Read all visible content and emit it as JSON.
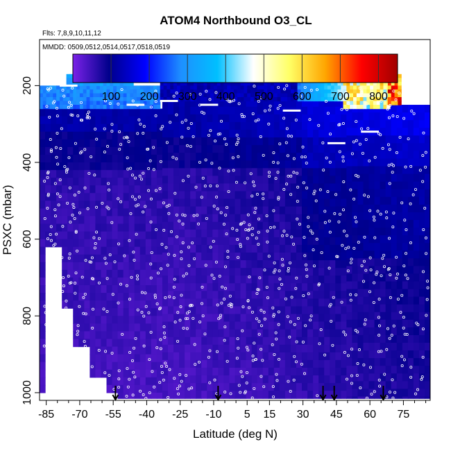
{
  "chart_data": {
    "type": "heatmap",
    "title": "ATOM4 Northbound O3_CL",
    "subtitle": "Flts: 7,8,9,10,11,12",
    "annotation": "MMDD: 0509,0512,0514,0517,0518,0519",
    "xlabel": "Latitude (deg N)",
    "ylabel": "PSXC (mbar)",
    "xlim": [
      -88,
      87
    ],
    "ylim": [
      1020,
      80
    ],
    "y_reversed": true,
    "x_ticks": [
      -85,
      -70,
      -55,
      -40,
      -25,
      -10,
      5,
      15,
      30,
      45,
      60,
      75
    ],
    "x_minor_ticks": [
      -80,
      -75,
      -65,
      -60,
      -50,
      -45,
      -35,
      -30,
      -20,
      -15,
      -5,
      0,
      10,
      20,
      25,
      35,
      40,
      50,
      55,
      65,
      70,
      80,
      85
    ],
    "y_ticks": [
      200,
      400,
      600,
      800,
      1000
    ],
    "colorbar": {
      "min": 0,
      "max": 850,
      "ticks": [
        100,
        200,
        300,
        400,
        500,
        600,
        700,
        800
      ],
      "colors": [
        "#7b22e8",
        "#00008b",
        "#0000ff",
        "#1e90ff",
        "#00bfff",
        "#ffffff",
        "#ffff66",
        "#ffa500",
        "#ff0000",
        "#a00000"
      ]
    },
    "dives": [
      {
        "lat_min": -85,
        "lat_max": -78,
        "p_max": 620
      },
      {
        "lat_min": -78,
        "lat_max": -72,
        "p_max": 780
      },
      {
        "lat_min": -72,
        "lat_max": -65,
        "p_max": 880
      },
      {
        "lat_min": -65,
        "lat_max": -57,
        "p_max": 960
      }
    ],
    "upper_band": {
      "lat_min": -76,
      "lat_max": -46,
      "p_min": 170,
      "p_max": 200,
      "value": 320
    },
    "low_band": {
      "lat_min": -88,
      "lat_max": -34,
      "p_min": 200,
      "p_max": 260,
      "value": 290
    },
    "high_ozone_band": {
      "lat_min": 48,
      "lat_max": 68,
      "p_min": 170,
      "p_max": 260,
      "value": 560
    },
    "flight_segments": [
      {
        "lat": -75,
        "p": 200
      },
      {
        "lat": -65,
        "p": 190
      },
      {
        "lat": -45,
        "p": 250
      },
      {
        "lat": -30,
        "p": 240
      },
      {
        "lat": -12,
        "p": 250
      },
      {
        "lat": 25,
        "p": 265
      },
      {
        "lat": 45,
        "p": 350
      },
      {
        "lat": 60,
        "p": 320
      }
    ],
    "arrow_latitudes": [
      -54,
      -8,
      39,
      44,
      66
    ]
  }
}
